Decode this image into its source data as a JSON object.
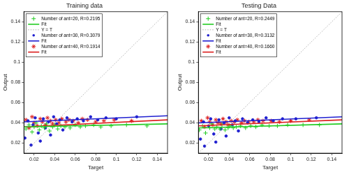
{
  "chart_data": [
    {
      "type": "scatter",
      "title": "Training data",
      "x_label": "Target",
      "y_label": "Output",
      "xlim": [
        0.01,
        0.15
      ],
      "ylim": [
        0.01,
        0.15
      ],
      "xticks": [
        0.02,
        0.04,
        0.06,
        0.08,
        0.1,
        0.12,
        0.14
      ],
      "yticks": [
        0.02,
        0.04,
        0.06,
        0.08,
        0.1,
        0.12,
        0.14
      ],
      "grid": false,
      "legend": "upper left",
      "series": [
        {
          "name": "Number of ant=20, R=0.2195",
          "type": "scatter",
          "marker": "plus",
          "color": "#22cc22",
          "x": [
            0.012,
            0.015,
            0.018,
            0.02,
            0.022,
            0.025,
            0.027,
            0.03,
            0.032,
            0.035,
            0.038,
            0.04,
            0.043,
            0.046,
            0.05,
            0.055,
            0.06,
            0.065,
            0.07,
            0.078,
            0.085,
            0.095,
            0.11,
            0.13
          ],
          "values": [
            0.034,
            0.038,
            0.031,
            0.036,
            0.04,
            0.033,
            0.037,
            0.035,
            0.039,
            0.032,
            0.036,
            0.038,
            0.034,
            0.037,
            0.036,
            0.035,
            0.038,
            0.036,
            0.037,
            0.038,
            0.036,
            0.037,
            0.038,
            0.037
          ]
        },
        {
          "name": "Fit",
          "type": "line",
          "line_style": "solid",
          "color": "#22cc22",
          "x": [
            0.01,
            0.15
          ],
          "values": [
            0.036,
            0.039
          ]
        },
        {
          "name": "Y = T",
          "type": "line",
          "line_style": "dotted",
          "color": "#999999",
          "x": [
            0.01,
            0.15
          ],
          "values": [
            0.01,
            0.15
          ]
        },
        {
          "name": "Number of ant=30, R=0.3079",
          "type": "scatter",
          "marker": "dot",
          "color": "#1f1fd0",
          "x": [
            0.011,
            0.014,
            0.017,
            0.019,
            0.021,
            0.024,
            0.026,
            0.029,
            0.031,
            0.034,
            0.036,
            0.039,
            0.042,
            0.045,
            0.048,
            0.052,
            0.057,
            0.062,
            0.068,
            0.075,
            0.082,
            0.09,
            0.1,
            0.12
          ],
          "values": [
            0.025,
            0.042,
            0.018,
            0.038,
            0.045,
            0.03,
            0.022,
            0.044,
            0.035,
            0.041,
            0.028,
            0.046,
            0.039,
            0.043,
            0.033,
            0.045,
            0.041,
            0.044,
            0.042,
            0.046,
            0.043,
            0.045,
            0.044,
            0.046
          ]
        },
        {
          "name": "Fit",
          "type": "line",
          "line_style": "solid",
          "color": "#1f1fd0",
          "x": [
            0.01,
            0.15
          ],
          "values": [
            0.041,
            0.047
          ]
        },
        {
          "name": "Number of ant=40, R=0.1914",
          "type": "scatter",
          "marker": "star",
          "color": "#dd2222",
          "x": [
            0.012,
            0.015,
            0.018,
            0.02,
            0.023,
            0.026,
            0.028,
            0.031,
            0.033,
            0.036,
            0.038,
            0.041,
            0.044,
            0.047,
            0.051,
            0.054,
            0.058,
            0.063,
            0.067,
            0.072,
            0.08,
            0.088,
            0.098,
            0.115
          ],
          "values": [
            0.043,
            0.035,
            0.046,
            0.04,
            0.037,
            0.044,
            0.041,
            0.038,
            0.045,
            0.042,
            0.039,
            0.043,
            0.04,
            0.044,
            0.041,
            0.043,
            0.042,
            0.04,
            0.044,
            0.043,
            0.041,
            0.042,
            0.043,
            0.042
          ]
        },
        {
          "name": "Fit",
          "type": "line",
          "line_style": "solid",
          "color": "#dd2222",
          "x": [
            0.01,
            0.15
          ],
          "values": [
            0.036,
            0.043
          ]
        }
      ]
    },
    {
      "type": "scatter",
      "title": "Testing Data",
      "x_label": "Target",
      "y_label": "Output",
      "xlim": [
        0.01,
        0.15
      ],
      "ylim": [
        0.01,
        0.15
      ],
      "xticks": [
        0.02,
        0.04,
        0.06,
        0.08,
        0.1,
        0.12,
        0.14
      ],
      "yticks": [
        0.02,
        0.04,
        0.06,
        0.08,
        0.1,
        0.12,
        0.14
      ],
      "grid": false,
      "legend": "upper left",
      "series": [
        {
          "name": "Number of ant=20, R=0.2449",
          "type": "scatter",
          "marker": "plus",
          "color": "#22cc22",
          "x": [
            0.011,
            0.014,
            0.017,
            0.021,
            0.023,
            0.026,
            0.028,
            0.031,
            0.033,
            0.036,
            0.039,
            0.041,
            0.044,
            0.047,
            0.051,
            0.056,
            0.061,
            0.066,
            0.072,
            0.079,
            0.087,
            0.097,
            0.112,
            0.128
          ],
          "values": [
            0.033,
            0.037,
            0.03,
            0.035,
            0.039,
            0.034,
            0.036,
            0.034,
            0.038,
            0.033,
            0.035,
            0.037,
            0.035,
            0.036,
            0.037,
            0.035,
            0.037,
            0.036,
            0.038,
            0.037,
            0.037,
            0.038,
            0.038,
            0.038
          ]
        },
        {
          "name": "Fit",
          "type": "line",
          "line_style": "solid",
          "color": "#22cc22",
          "x": [
            0.01,
            0.15
          ],
          "values": [
            0.035,
            0.039
          ]
        },
        {
          "name": "Y = T",
          "type": "line",
          "line_style": "dotted",
          "color": "#999999",
          "x": [
            0.01,
            0.15
          ],
          "values": [
            0.01,
            0.15
          ]
        },
        {
          "name": "Number of ant=30, R=0.3132",
          "type": "scatter",
          "marker": "dot",
          "color": "#1f1fd0",
          "x": [
            0.012,
            0.015,
            0.016,
            0.02,
            0.022,
            0.025,
            0.027,
            0.03,
            0.032,
            0.035,
            0.037,
            0.04,
            0.043,
            0.046,
            0.049,
            0.053,
            0.058,
            0.063,
            0.069,
            0.076,
            0.083,
            0.092,
            0.105,
            0.125
          ],
          "values": [
            0.024,
            0.041,
            0.017,
            0.037,
            0.044,
            0.029,
            0.021,
            0.043,
            0.034,
            0.04,
            0.027,
            0.045,
            0.038,
            0.042,
            0.032,
            0.044,
            0.04,
            0.043,
            0.041,
            0.045,
            0.042,
            0.044,
            0.044,
            0.045
          ]
        },
        {
          "name": "Fit",
          "type": "line",
          "line_style": "solid",
          "color": "#1f1fd0",
          "x": [
            0.01,
            0.15
          ],
          "values": [
            0.04,
            0.046
          ]
        },
        {
          "name": "Number of ant=40, R=0.1660",
          "type": "scatter",
          "marker": "star",
          "color": "#dd2222",
          "x": [
            0.013,
            0.016,
            0.019,
            0.021,
            0.024,
            0.027,
            0.029,
            0.032,
            0.034,
            0.037,
            0.039,
            0.042,
            0.045,
            0.048,
            0.052,
            0.055,
            0.059,
            0.064,
            0.068,
            0.073,
            0.081,
            0.089,
            0.1,
            0.118
          ],
          "values": [
            0.042,
            0.036,
            0.045,
            0.041,
            0.038,
            0.043,
            0.04,
            0.039,
            0.044,
            0.041,
            0.038,
            0.042,
            0.041,
            0.043,
            0.04,
            0.042,
            0.041,
            0.041,
            0.043,
            0.042,
            0.042,
            0.041,
            0.042,
            0.043
          ]
        },
        {
          "name": "Fit",
          "type": "line",
          "line_style": "solid",
          "color": "#dd2222",
          "x": [
            0.01,
            0.15
          ],
          "values": [
            0.037,
            0.043
          ]
        }
      ]
    }
  ]
}
